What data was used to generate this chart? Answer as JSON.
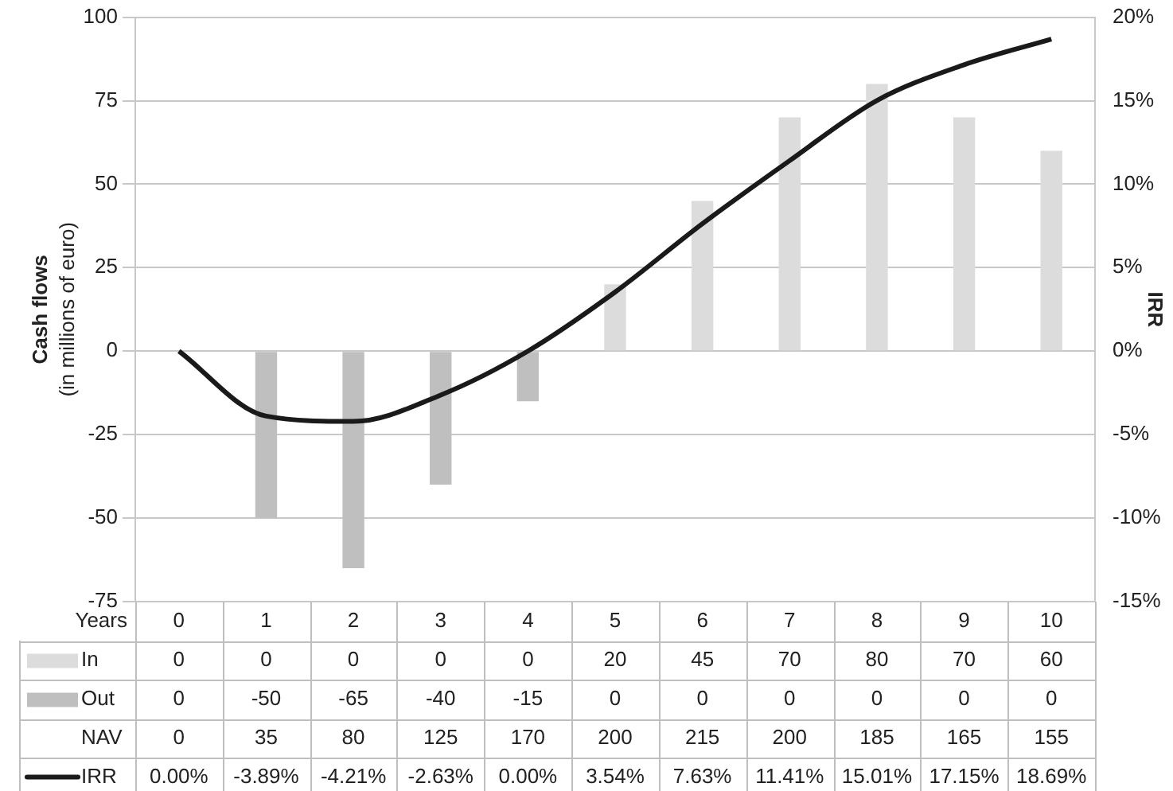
{
  "chart_data": {
    "type": "bar",
    "stacked": true,
    "xlabel": "Years",
    "ylabel": "Cash flows (in millions of euro)",
    "y2label": "IRR",
    "categories": [
      "0",
      "1",
      "2",
      "3",
      "4",
      "5",
      "6",
      "7",
      "8",
      "9",
      "10"
    ],
    "series": [
      {
        "name": "In",
        "color": "#dcdcdc",
        "values": [
          0,
          0,
          0,
          0,
          0,
          20,
          45,
          70,
          80,
          70,
          60
        ]
      },
      {
        "name": "Out",
        "color": "#bfbfbf",
        "values": [
          0,
          -50,
          -65,
          -40,
          -15,
          0,
          0,
          0,
          0,
          0,
          0
        ]
      },
      {
        "name": "IRR",
        "type": "line",
        "axis": "y2",
        "color": "#1a1a1a",
        "marker": "none",
        "values": [
          0,
          -3.89,
          -4.21,
          -2.63,
          0,
          3.54,
          7.63,
          11.41,
          15.01,
          17.15,
          18.69
        ],
        "value_labels": [
          "0.00%",
          "-3.89%",
          "-4.21%",
          "-2.63%",
          "0.00%",
          "3.54%",
          "7.63%",
          "11.41%",
          "15.01%",
          "17.15%",
          "18.69%"
        ]
      }
    ],
    "ylim": [
      -75,
      100
    ],
    "yticks": [
      -75,
      -50,
      -25,
      0,
      25,
      50,
      75,
      100
    ],
    "y2lim": [
      -15,
      20
    ],
    "y2ticks": [
      {
        "value": -15,
        "label": "-15%"
      },
      {
        "value": -10,
        "label": "-10%"
      },
      {
        "value": -5,
        "label": "-5%"
      },
      {
        "value": 0,
        "label": "0%"
      },
      {
        "value": 5,
        "label": "5%"
      },
      {
        "value": 10,
        "label": "10%"
      },
      {
        "value": 15,
        "label": "15%"
      },
      {
        "value": 20,
        "label": "20%"
      }
    ],
    "grid": "y",
    "data_labels": true,
    "legend": "bottom",
    "annotations": [
      "NAV",
      "0",
      "35",
      "80",
      "125",
      "170",
      "200",
      "215",
      "200",
      "185",
      "165",
      "155"
    ]
  }
}
